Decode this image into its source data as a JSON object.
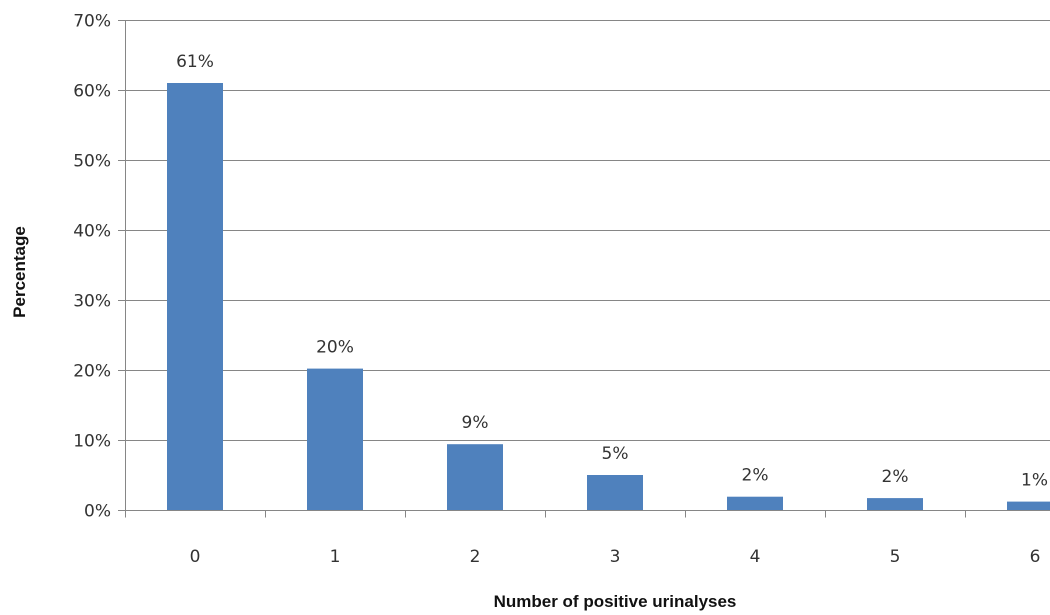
{
  "chart_data": {
    "type": "bar",
    "title": "",
    "xlabel": "Number of positive urinalyses",
    "ylabel": "Percentage",
    "categories": [
      "0",
      "1",
      "2",
      "3",
      "4",
      "5",
      "6"
    ],
    "values": [
      61,
      20.2,
      9.4,
      5,
      1.9,
      1.7,
      1.2
    ],
    "data_labels": [
      "61%",
      "20%",
      "9%",
      "5%",
      "2%",
      "2%",
      "1%"
    ],
    "ylim": [
      0,
      70
    ],
    "yticks": [
      0,
      10,
      20,
      30,
      40,
      50,
      60,
      70
    ],
    "ytick_labels": [
      "0%",
      "10%",
      "20%",
      "30%",
      "40%",
      "50%",
      "60%",
      "70%"
    ],
    "grid": true,
    "legend": "none",
    "bar_color": "#4F81BD",
    "gridline_color": "#868686"
  }
}
